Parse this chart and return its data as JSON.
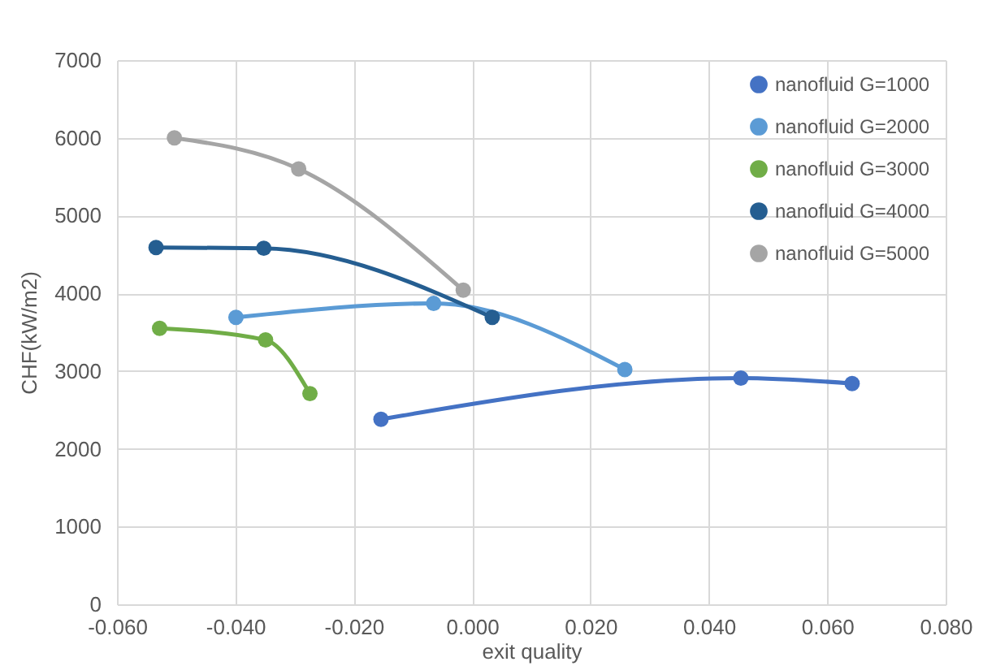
{
  "chart_data": {
    "type": "line",
    "xlabel": "exit quality",
    "ylabel": "CHF(kW/m2)",
    "xlim": [
      -0.06,
      0.08
    ],
    "xticks": [
      {
        "value": -0.06,
        "label": "-0.060"
      },
      {
        "value": -0.04,
        "label": "-0.040"
      },
      {
        "value": -0.02,
        "label": "-0.020"
      },
      {
        "value": 0,
        "label": "0.000"
      },
      {
        "value": 0.02,
        "label": "0.020"
      },
      {
        "value": 0.04,
        "label": "0.040"
      },
      {
        "value": 0.06,
        "label": "0.060"
      },
      {
        "value": 0.08,
        "label": "0.080"
      }
    ],
    "ylim": [
      0,
      7000
    ],
    "yticks": [
      0,
      1000,
      2000,
      3000,
      4000,
      5000,
      6000,
      7000
    ],
    "grid": true,
    "legend": "top right",
    "marker": "circle",
    "line_style": "solid",
    "series": [
      {
        "name": "nanofluid G=1000",
        "color": "#4472c4",
        "x": [
          -0.0154,
          0.0454,
          0.0642
        ],
        "values": [
          2380,
          2910,
          2840
        ]
      },
      {
        "name": "nanofluid G=2000",
        "color": "#5b9bd5",
        "x": [
          -0.0399,
          -0.0065,
          0.0258
        ],
        "values": [
          3690,
          3870,
          3020
        ]
      },
      {
        "name": "nanofluid G=3000",
        "color": "#70ad47",
        "x": [
          -0.0528,
          -0.0349,
          -0.0274
        ],
        "values": [
          3550,
          3400,
          2710
        ]
      },
      {
        "name": "nanofluid G=4000",
        "color": "#255e91",
        "x": [
          -0.0534,
          -0.0352,
          0.0034
        ],
        "values": [
          4590,
          4580,
          3690
        ]
      },
      {
        "name": "nanofluid G=5000",
        "color": "#a5a5a5",
        "x": [
          -0.0503,
          -0.0293,
          -0.0015
        ],
        "values": [
          6000,
          5600,
          4040
        ]
      }
    ]
  }
}
